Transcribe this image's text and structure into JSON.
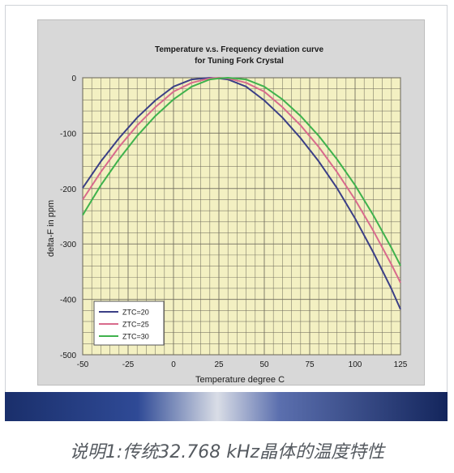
{
  "caption": "说明1:传统32.768 kHz晶体的温度特性",
  "colors": {
    "plot_bg": "#f3f0c2",
    "grid": "#6d6a5a",
    "panel_bg": "#d8d8d8",
    "series": [
      "#3b3f86",
      "#d86a8c",
      "#3fb24d"
    ]
  },
  "chart_data": {
    "type": "line",
    "title": "Temperature v.s. Frequency deviation curve",
    "subtitle": "for Tuning Fork Crystal",
    "xlabel": "Temperature degree C",
    "ylabel": "delta-F in ppm",
    "xlim": [
      -50,
      125
    ],
    "ylim": [
      -500,
      0
    ],
    "xticks": [
      -50,
      -25,
      0,
      25,
      50,
      75,
      100,
      125
    ],
    "yticks": [
      0,
      -100,
      -200,
      -300,
      -400,
      -500
    ],
    "grid": true,
    "legend": "bottom-left",
    "x": [
      -50,
      -40,
      -30,
      -20,
      -10,
      0,
      10,
      20,
      25,
      30,
      40,
      50,
      60,
      70,
      80,
      90,
      100,
      110,
      120,
      125
    ],
    "series": [
      {
        "name": "ZTC=20",
        "values": [
          -199,
          -151,
          -109,
          -72,
          -41,
          -16,
          -3,
          0,
          -1,
          -3,
          -16,
          -41,
          -72,
          -109,
          -151,
          -199,
          -254,
          -315,
          -381,
          -418
        ]
      },
      {
        "name": "ZTC=25",
        "values": [
          -220,
          -170,
          -125,
          -86,
          -53,
          -25,
          -9,
          -1,
          0,
          -1,
          -9,
          -25,
          -53,
          -86,
          -125,
          -170,
          -220,
          -276,
          -337,
          -370
        ]
      },
      {
        "name": "ZTC=30",
        "values": [
          -248,
          -194,
          -147,
          -105,
          -69,
          -39,
          -16,
          -3,
          -1,
          0,
          -3,
          -16,
          -39,
          -69,
          -105,
          -147,
          -194,
          -248,
          -307,
          -339
        ]
      }
    ]
  }
}
